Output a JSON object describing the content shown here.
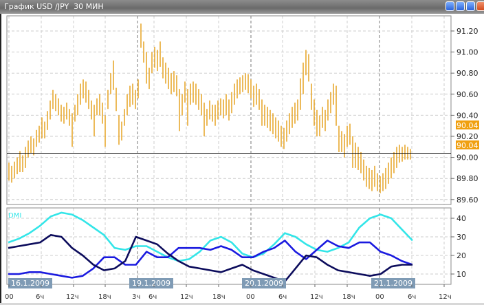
{
  "window": {
    "title": "График USD /JPY  30 МИН",
    "buttons": [
      "tile-icon",
      "minimize-icon",
      "maximize-icon",
      "close-icon"
    ]
  },
  "colors": {
    "bars": "#e8a830",
    "adx": "#33e5e8",
    "plus_di": "#1a1adf",
    "minus_di": "#0c0c5c",
    "price_badge": "#f0a010",
    "date_badge": "#7f9bb5"
  },
  "chart_data": [
    {
      "type": "bar",
      "subtype": "ohlc-high-low",
      "symbol": "USD/JPY",
      "timeframe": "30 МИН",
      "ylim": [
        89.55,
        91.35
      ],
      "yticks": [
        "91.20",
        "91.00",
        "90.80",
        "90.60",
        "90.40",
        "90.20",
        "90.00",
        "89.80",
        "89.60"
      ],
      "current_price": 90.04,
      "price_badges": [
        "90.04",
        "90.04"
      ],
      "grid": true,
      "bars": [
        [
          89.95,
          89.78
        ],
        [
          89.92,
          89.76
        ],
        [
          89.96,
          89.8
        ],
        [
          90.0,
          89.84
        ],
        [
          90.06,
          89.86
        ],
        [
          90.02,
          89.86
        ],
        [
          90.1,
          89.9
        ],
        [
          90.16,
          90.0
        ],
        [
          90.2,
          90.04
        ],
        [
          90.18,
          90.02
        ],
        [
          90.26,
          90.1
        ],
        [
          90.3,
          90.14
        ],
        [
          90.38,
          90.18
        ],
        [
          90.34,
          90.18
        ],
        [
          90.44,
          90.26
        ],
        [
          90.54,
          90.36
        ],
        [
          90.64,
          90.46
        ],
        [
          90.6,
          90.44
        ],
        [
          90.56,
          90.4
        ],
        [
          90.5,
          90.34
        ],
        [
          90.48,
          90.32
        ],
        [
          90.52,
          90.36
        ],
        [
          90.46,
          90.3
        ],
        [
          90.42,
          90.1
        ],
        [
          90.5,
          90.34
        ],
        [
          90.6,
          90.4
        ],
        [
          90.7,
          90.5
        ],
        [
          90.74,
          90.56
        ],
        [
          90.72,
          90.52
        ],
        [
          90.64,
          90.46
        ],
        [
          90.54,
          90.36
        ],
        [
          90.5,
          90.2
        ],
        [
          90.56,
          90.4
        ],
        [
          90.6,
          90.4
        ],
        [
          90.52,
          90.32
        ],
        [
          90.4,
          90.1
        ],
        [
          90.64,
          90.46
        ],
        [
          90.8,
          90.6
        ],
        [
          90.92,
          90.64
        ],
        [
          90.66,
          90.44
        ],
        [
          90.4,
          90.12
        ],
        [
          90.34,
          90.16
        ],
        [
          90.46,
          90.3
        ],
        [
          90.6,
          90.4
        ],
        [
          90.68,
          90.48
        ],
        [
          90.7,
          90.5
        ],
        [
          90.64,
          90.46
        ],
        [
          90.74,
          90.56
        ],
        [
          91.27,
          91.04
        ],
        [
          91.1,
          90.9
        ],
        [
          91.0,
          90.7
        ],
        [
          90.85,
          90.65
        ],
        [
          91.0,
          90.8
        ],
        [
          91.05,
          90.85
        ],
        [
          91.02,
          90.82
        ],
        [
          91.1,
          90.86
        ],
        [
          90.95,
          90.75
        ],
        [
          90.9,
          90.7
        ],
        [
          90.85,
          90.65
        ],
        [
          90.8,
          90.6
        ],
        [
          90.82,
          90.62
        ],
        [
          90.78,
          90.58
        ],
        [
          90.65,
          90.25
        ],
        [
          90.6,
          90.4
        ],
        [
          90.72,
          90.52
        ],
        [
          90.65,
          90.3
        ],
        [
          90.7,
          90.5
        ],
        [
          90.72,
          90.52
        ],
        [
          90.7,
          90.5
        ],
        [
          90.65,
          90.45
        ],
        [
          90.6,
          90.4
        ],
        [
          90.52,
          90.2
        ],
        [
          90.46,
          90.3
        ],
        [
          90.54,
          90.36
        ],
        [
          90.5,
          90.34
        ],
        [
          90.5,
          90.3
        ],
        [
          90.54,
          90.36
        ],
        [
          90.56,
          90.4
        ],
        [
          90.55,
          90.37
        ],
        [
          90.6,
          90.4
        ],
        [
          90.55,
          90.35
        ],
        [
          90.62,
          90.42
        ],
        [
          90.7,
          90.5
        ],
        [
          90.74,
          90.56
        ],
        [
          90.76,
          90.6
        ],
        [
          90.78,
          90.62
        ],
        [
          90.8,
          90.64
        ],
        [
          90.79,
          90.61
        ],
        [
          90.74,
          90.56
        ],
        [
          90.68,
          90.48
        ],
        [
          90.7,
          90.5
        ],
        [
          90.65,
          90.45
        ],
        [
          90.55,
          90.3
        ],
        [
          90.5,
          90.3
        ],
        [
          90.48,
          90.28
        ],
        [
          90.45,
          90.25
        ],
        [
          90.42,
          90.22
        ],
        [
          90.38,
          90.18
        ],
        [
          90.35,
          90.15
        ],
        [
          90.3,
          90.1
        ],
        [
          90.28,
          90.08
        ],
        [
          90.35,
          90.15
        ],
        [
          90.42,
          90.22
        ],
        [
          90.48,
          90.28
        ],
        [
          90.52,
          90.32
        ],
        [
          90.55,
          90.35
        ],
        [
          90.75,
          90.45
        ],
        [
          90.9,
          90.6
        ],
        [
          91.02,
          90.78
        ],
        [
          90.98,
          90.72
        ],
        [
          90.7,
          90.45
        ],
        [
          90.55,
          90.3
        ],
        [
          90.45,
          90.2
        ],
        [
          90.4,
          90.2
        ],
        [
          90.48,
          90.28
        ],
        [
          90.45,
          90.25
        ],
        [
          90.55,
          90.35
        ],
        [
          90.62,
          90.42
        ],
        [
          90.7,
          90.5
        ],
        [
          90.68,
          90.3
        ],
        [
          90.3,
          90.05
        ],
        [
          90.25,
          90.05
        ],
        [
          90.22,
          90.0
        ],
        [
          90.3,
          90.1
        ],
        [
          90.32,
          90.12
        ],
        [
          90.2,
          89.9
        ],
        [
          90.14,
          89.9
        ],
        [
          90.1,
          89.88
        ],
        [
          90.05,
          89.85
        ],
        [
          89.98,
          89.78
        ],
        [
          89.92,
          89.72
        ],
        [
          89.9,
          89.7
        ],
        [
          89.88,
          89.68
        ],
        [
          89.92,
          89.72
        ],
        [
          89.85,
          89.68
        ],
        [
          89.82,
          89.66
        ],
        [
          89.85,
          89.68
        ],
        [
          89.9,
          89.7
        ],
        [
          89.95,
          89.75
        ],
        [
          90.0,
          89.8
        ],
        [
          90.05,
          89.85
        ],
        [
          90.1,
          89.9
        ],
        [
          90.12,
          89.95
        ],
        [
          90.1,
          89.96
        ],
        [
          90.12,
          89.98
        ],
        [
          90.1,
          89.98
        ],
        [
          90.08,
          89.98
        ]
      ]
    },
    {
      "type": "line",
      "label": "DMI",
      "ylim": [
        5,
        45
      ],
      "yticks": [
        "40",
        "30",
        "20",
        "10"
      ],
      "grid": true,
      "series": [
        {
          "color": "#33e5e8",
          "values": [
            27,
            29,
            32,
            36,
            41,
            43,
            42,
            39,
            35,
            31,
            24,
            23,
            25,
            25,
            22,
            19,
            17,
            18,
            22,
            28,
            30,
            27,
            21,
            19,
            21,
            26,
            32,
            30,
            26,
            23,
            22,
            24,
            27,
            35,
            40,
            42,
            40,
            34,
            28
          ]
        },
        {
          "color": "#1a1adf",
          "values": [
            10,
            10,
            11,
            11,
            10,
            9,
            8,
            9,
            13,
            19,
            19,
            15,
            15,
            22,
            19,
            19,
            24,
            24,
            24,
            23,
            25,
            23,
            19,
            19,
            22,
            24,
            28,
            22,
            18,
            23,
            28,
            25,
            24,
            27,
            27,
            22,
            20,
            17,
            15
          ]
        },
        {
          "color": "#0c0c5c",
          "values": [
            24,
            25,
            26,
            27,
            31,
            30,
            24,
            20,
            15,
            12,
            13,
            17,
            30,
            28,
            26,
            21,
            17,
            14,
            13,
            12,
            11,
            13,
            15,
            12,
            10,
            8,
            6,
            13,
            20,
            19,
            15,
            12,
            11,
            10,
            9,
            10,
            14,
            15,
            15
          ]
        }
      ]
    }
  ],
  "time_axis": {
    "date_badges": [
      "16.1.2009",
      "19.1.2009",
      "20.1.2009",
      "21.1.2009"
    ],
    "ticks": [
      "00",
      "6ч",
      "12ч",
      "18ч",
      "3ч",
      "6ч",
      "12ч",
      "18ч",
      "00",
      "6ч",
      "12ч",
      "18ч",
      "00",
      "6ч",
      "12ч"
    ]
  }
}
